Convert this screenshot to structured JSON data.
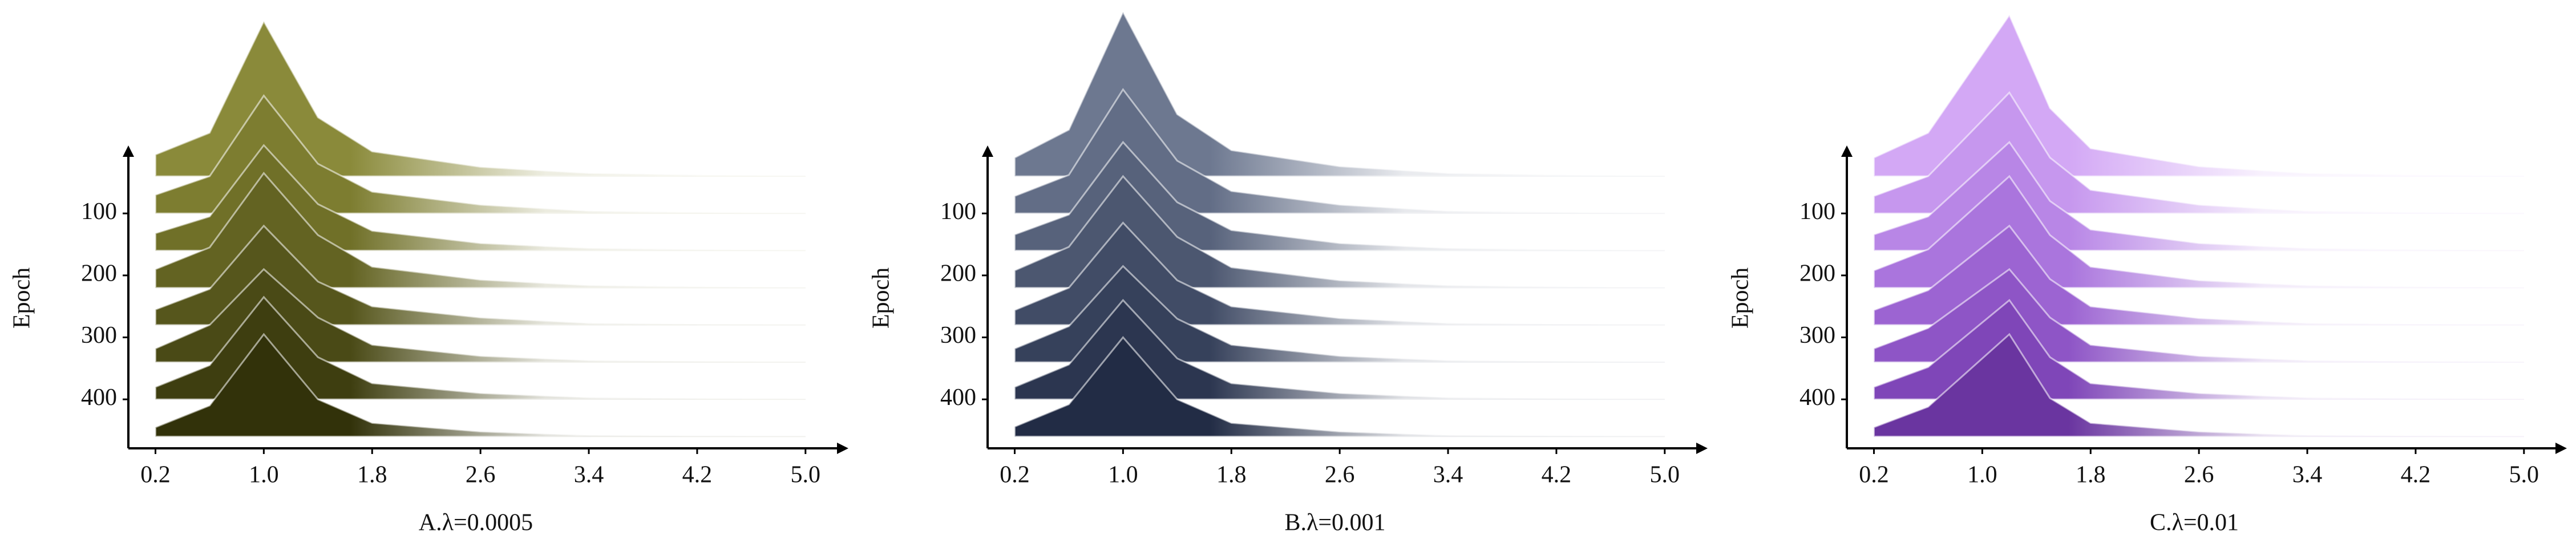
{
  "chart_data": [
    {
      "type": "ridgeline",
      "title": "A.λ=0.0005",
      "ylabel": "Epoch",
      "xlim": [
        0,
        5.3
      ],
      "xticks": [
        0.2,
        {
          "value": 1,
          "label": "1.0"
        },
        1.8,
        2.6,
        3.4,
        4.2,
        {
          "value": 5,
          "label": "5.0"
        }
      ],
      "ylim": [
        479,
        -6
      ],
      "yticks": [
        100,
        200,
        300,
        400
      ],
      "x": [
        0.2,
        0.6,
        1.0,
        1.4,
        1.8,
        2.6,
        3.4,
        5.0
      ],
      "series": [
        {
          "epoch": 40,
          "color": "#8a8a3a",
          "values": [
            35,
            70,
            250,
            95,
            40,
            15,
            5,
            0
          ]
        },
        {
          "epoch": 100,
          "color": "#7d7d30",
          "values": [
            30,
            60,
            190,
            80,
            35,
            14,
            4,
            0
          ]
        },
        {
          "epoch": 160,
          "color": "#707028",
          "values": [
            28,
            55,
            170,
            75,
            32,
            12,
            4,
            0
          ]
        },
        {
          "epoch": 220,
          "color": "#636322",
          "values": [
            30,
            65,
            185,
            85,
            34,
            13,
            4,
            0
          ]
        },
        {
          "epoch": 280,
          "color": "#56561c",
          "values": [
            25,
            58,
            160,
            70,
            30,
            12,
            3,
            0
          ]
        },
        {
          "epoch": 340,
          "color": "#4a4a16",
          "values": [
            22,
            60,
            150,
            72,
            28,
            10,
            3,
            0
          ]
        },
        {
          "epoch": 400,
          "color": "#3e3e10",
          "values": [
            20,
            55,
            165,
            68,
            26,
            10,
            3,
            0
          ]
        },
        {
          "epoch": 460,
          "color": "#32320a",
          "values": [
            15,
            50,
            165,
            60,
            22,
            8,
            2,
            0
          ]
        }
      ]
    },
    {
      "type": "ridgeline",
      "title": "B.λ=0.001",
      "ylabel": "Epoch",
      "xlim": [
        0,
        5.3
      ],
      "xticks": [
        0.2,
        {
          "value": 1,
          "label": "1.0"
        },
        1.8,
        2.6,
        3.4,
        4.2,
        {
          "value": 5,
          "label": "5.0"
        }
      ],
      "ylim": [
        479,
        -6
      ],
      "yticks": [
        100,
        200,
        300,
        400
      ],
      "x": [
        0.2,
        0.6,
        1.0,
        1.4,
        1.8,
        2.6,
        3.4,
        5.0
      ],
      "series": [
        {
          "epoch": 40,
          "color": "#6d7890",
          "values": [
            30,
            75,
            265,
            100,
            42,
            16,
            5,
            0
          ]
        },
        {
          "epoch": 100,
          "color": "#626d86",
          "values": [
            28,
            62,
            200,
            85,
            36,
            14,
            4,
            0
          ]
        },
        {
          "epoch": 160,
          "color": "#57627b",
          "values": [
            26,
            58,
            175,
            78,
            33,
            12,
            4,
            0
          ]
        },
        {
          "epoch": 220,
          "color": "#4c5770",
          "values": [
            28,
            66,
            180,
            82,
            33,
            12,
            4,
            0
          ]
        },
        {
          "epoch": 280,
          "color": "#414c66",
          "values": [
            24,
            60,
            165,
            72,
            30,
            11,
            3,
            0
          ]
        },
        {
          "epoch": 340,
          "color": "#36415b",
          "values": [
            22,
            58,
            155,
            70,
            28,
            10,
            3,
            0
          ]
        },
        {
          "epoch": 400,
          "color": "#2c3650",
          "values": [
            20,
            56,
            160,
            66,
            26,
            10,
            3,
            0
          ]
        },
        {
          "epoch": 460,
          "color": "#222c45",
          "values": [
            16,
            52,
            160,
            60,
            22,
            8,
            2,
            0
          ]
        }
      ]
    },
    {
      "type": "ridgeline",
      "title": "C.λ=0.01",
      "ylabel": "Epoch",
      "xlim": [
        0,
        5.3
      ],
      "xticks": [
        0.2,
        {
          "value": 1,
          "label": "1.0"
        },
        1.8,
        2.6,
        3.4,
        4.2,
        {
          "value": 5,
          "label": "5.0"
        }
      ],
      "ylim": [
        479,
        -6
      ],
      "yticks": [
        100,
        200,
        300,
        400
      ],
      "x": [
        0.2,
        0.6,
        1.2,
        1.5,
        1.8,
        2.6,
        3.4,
        5.0
      ],
      "series": [
        {
          "epoch": 40,
          "color": "#d3a8f5",
          "values": [
            30,
            70,
            260,
            110,
            45,
            16,
            5,
            0
          ]
        },
        {
          "epoch": 100,
          "color": "#c697ee",
          "values": [
            28,
            60,
            195,
            90,
            38,
            14,
            4,
            0
          ]
        },
        {
          "epoch": 160,
          "color": "#b886e6",
          "values": [
            26,
            55,
            175,
            80,
            34,
            12,
            4,
            0
          ]
        },
        {
          "epoch": 220,
          "color": "#aa75dd",
          "values": [
            28,
            62,
            180,
            85,
            34,
            12,
            4,
            0
          ]
        },
        {
          "epoch": 280,
          "color": "#9c64d2",
          "values": [
            24,
            56,
            160,
            74,
            30,
            11,
            3,
            0
          ]
        },
        {
          "epoch": 340,
          "color": "#8e55c6",
          "values": [
            22,
            55,
            150,
            72,
            28,
            10,
            3,
            0
          ]
        },
        {
          "epoch": 400,
          "color": "#7f46b8",
          "values": [
            20,
            52,
            160,
            68,
            26,
            10,
            3,
            0
          ]
        },
        {
          "epoch": 460,
          "color": "#6a35a0",
          "values": [
            15,
            48,
            165,
            62,
            22,
            8,
            2,
            0
          ]
        }
      ]
    }
  ]
}
